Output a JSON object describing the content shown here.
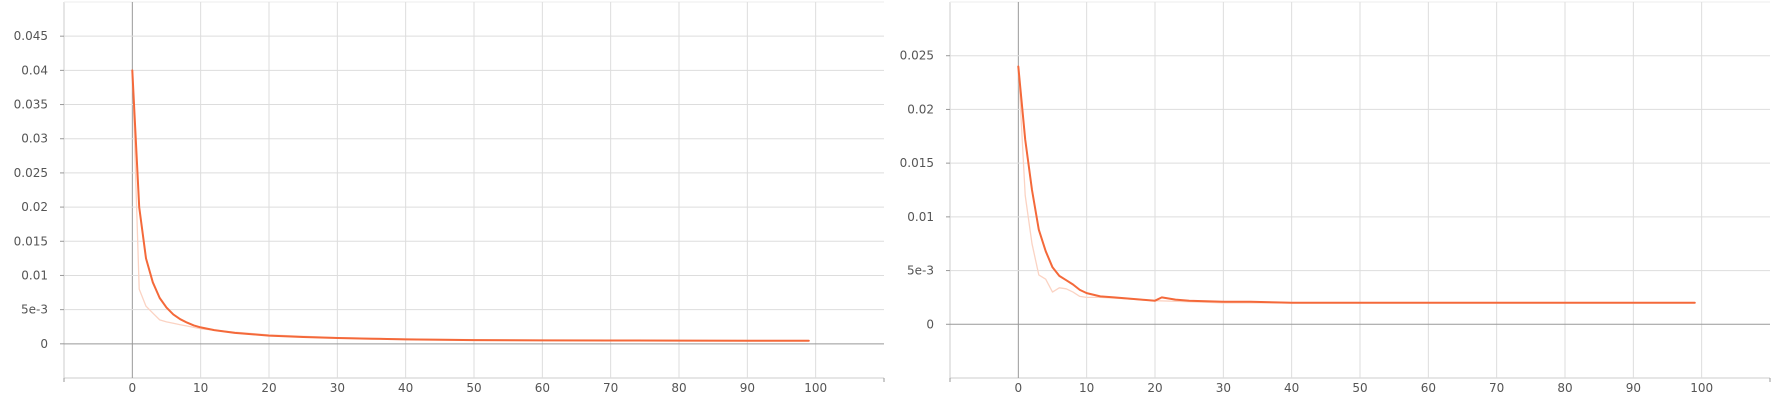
{
  "chart_data": [
    {
      "type": "line",
      "title": "",
      "xlabel": "",
      "ylabel": "",
      "xlim": [
        -10,
        110
      ],
      "ylim": [
        -0.005,
        0.05
      ],
      "x_ticks": [
        0,
        10,
        20,
        30,
        40,
        50,
        60,
        70,
        80,
        90,
        100
      ],
      "x_tick_labels": [
        "0",
        "10",
        "20",
        "30",
        "40",
        "50",
        "60",
        "70",
        "80",
        "90",
        "100"
      ],
      "y_ticks": [
        0,
        0.005,
        0.01,
        0.015,
        0.02,
        0.025,
        0.03,
        0.035,
        0.04,
        0.045
      ],
      "y_tick_labels": [
        "0",
        "5e-3",
        "0.01",
        "0.015",
        "0.02",
        "0.025",
        "0.03",
        "0.035",
        "0.04",
        "0.045"
      ],
      "grid": true,
      "series": [
        {
          "role": "raw",
          "color": "#fbd3c3",
          "x": [
            0,
            1,
            2,
            3,
            4,
            5,
            6,
            7,
            8,
            9,
            10,
            12,
            15,
            20,
            25,
            30,
            40,
            50,
            60,
            70,
            80,
            90,
            99
          ],
          "y": [
            0.04,
            0.008,
            0.0055,
            0.0045,
            0.0035,
            0.0032,
            0.003,
            0.0028,
            0.0026,
            0.0024,
            0.0022,
            0.002,
            0.0017,
            0.0013,
            0.0011,
            0.0009,
            0.0007,
            0.0006,
            0.00055,
            0.0005,
            0.0005,
            0.00048,
            0.00048
          ]
        },
        {
          "role": "smoothed",
          "color": "#f4693a",
          "x": [
            0,
            1,
            2,
            3,
            4,
            5,
            6,
            7,
            8,
            9,
            10,
            12,
            15,
            20,
            25,
            30,
            35,
            40,
            50,
            60,
            70,
            80,
            90,
            99
          ],
          "y": [
            0.04,
            0.02,
            0.0125,
            0.009,
            0.0067,
            0.0053,
            0.0043,
            0.0036,
            0.0031,
            0.0027,
            0.0024,
            0.002,
            0.0016,
            0.0012,
            0.001,
            0.00085,
            0.00075,
            0.00065,
            0.00055,
            0.0005,
            0.00048,
            0.00047,
            0.00046,
            0.00046
          ]
        }
      ]
    },
    {
      "type": "line",
      "title": "",
      "xlabel": "",
      "ylabel": "",
      "xlim": [
        -10,
        110
      ],
      "ylim": [
        -0.005,
        0.03
      ],
      "x_ticks": [
        0,
        10,
        20,
        30,
        40,
        50,
        60,
        70,
        80,
        90,
        100
      ],
      "x_tick_labels": [
        "0",
        "10",
        "20",
        "30",
        "40",
        "50",
        "60",
        "70",
        "80",
        "90",
        "100"
      ],
      "y_ticks": [
        0,
        0.005,
        0.01,
        0.015,
        0.02,
        0.025
      ],
      "y_tick_labels": [
        "0",
        "5e-3",
        "0.01",
        "0.015",
        "0.02",
        "0.025"
      ],
      "grid": true,
      "series": [
        {
          "role": "raw",
          "color": "#fbd3c3",
          "x": [
            0,
            1,
            2,
            3,
            4,
            5,
            6,
            7,
            8,
            9,
            10,
            12,
            15,
            20,
            25,
            30,
            40,
            50,
            60,
            70,
            80,
            90,
            99
          ],
          "y": [
            0.024,
            0.012,
            0.0075,
            0.0046,
            0.0042,
            0.003,
            0.0034,
            0.0033,
            0.003,
            0.0026,
            0.0025,
            0.0025,
            0.0024,
            0.0022,
            0.0021,
            0.002,
            0.002,
            0.002,
            0.002,
            0.002,
            0.002,
            0.002,
            0.002
          ]
        },
        {
          "role": "smoothed",
          "color": "#f4693a",
          "x": [
            0,
            1,
            2,
            3,
            4,
            5,
            6,
            7,
            8,
            9,
            10,
            12,
            14,
            16,
            18,
            20,
            21,
            23,
            25,
            30,
            34,
            40,
            50,
            60,
            70,
            80,
            90,
            99
          ],
          "y": [
            0.024,
            0.0172,
            0.0125,
            0.0088,
            0.0068,
            0.0053,
            0.0045,
            0.0041,
            0.0037,
            0.0032,
            0.0029,
            0.0026,
            0.0025,
            0.0024,
            0.0023,
            0.0022,
            0.0025,
            0.0023,
            0.0022,
            0.0021,
            0.0021,
            0.002,
            0.002,
            0.002,
            0.002,
            0.002,
            0.002,
            0.002
          ]
        }
      ]
    }
  ]
}
